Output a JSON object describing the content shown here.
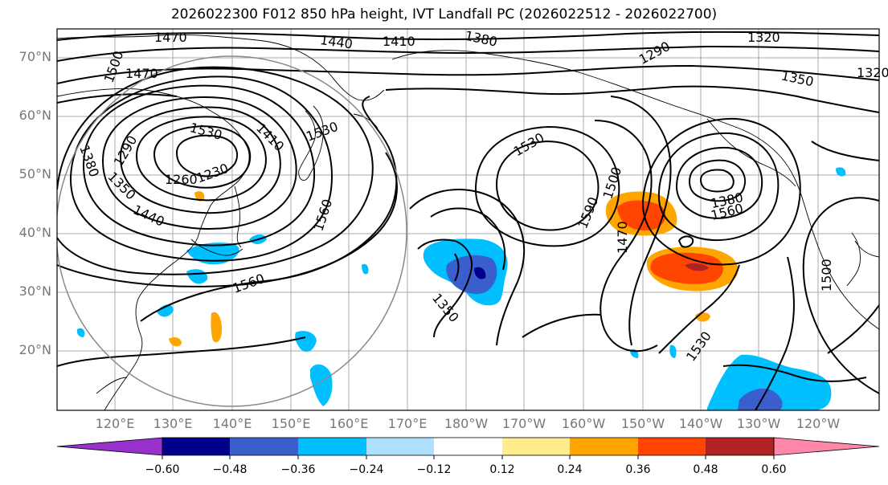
{
  "title": "2026022300 F012 850 hPa height, IVT Landfall PC (2026022512 - 2026022700)",
  "lat_labels": [
    "70°N",
    "60°N",
    "50°N",
    "40°N",
    "30°N",
    "20°N"
  ],
  "lon_labels": [
    "120°E",
    "130°E",
    "140°E",
    "150°E",
    "160°E",
    "170°E",
    "180°W",
    "170°W",
    "160°W",
    "150°W",
    "140°W",
    "130°W",
    "120°W"
  ],
  "contour_labels": [
    "1470",
    "1500",
    "1470",
    "1440",
    "1410",
    "1380",
    "1290",
    "1320",
    "1350",
    "1320",
    "1380",
    "1290",
    "1260",
    "1230",
    "1410",
    "1350",
    "1440",
    "1530",
    "1530",
    "1560",
    "1530",
    "1560",
    "1590",
    "1500",
    "1470",
    "1350",
    "1380",
    "1560",
    "1500",
    "1530"
  ],
  "colorbar": {
    "ticks": [
      "−0.60",
      "−0.48",
      "−0.36",
      "−0.24",
      "−0.12",
      "0.12",
      "0.24",
      "0.36",
      "0.48",
      "0.60"
    ],
    "colors": [
      "#9932cc",
      "#00008b",
      "#3a5fcd",
      "#00bfff",
      "#b0e0ff",
      "#ffffff",
      "#ffec8b",
      "#ffa500",
      "#ff4500",
      "#b22222",
      "#ff88aa"
    ]
  }
}
